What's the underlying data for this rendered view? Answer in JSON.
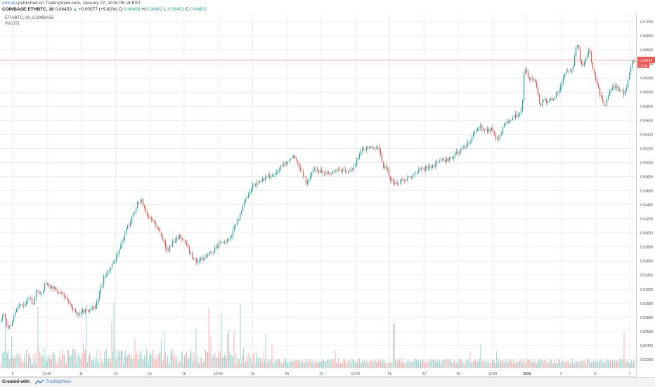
{
  "header": {
    "user": "emrulsi",
    "published": " published on TradingView.com, January 07, 2018 06:16 EST",
    "symbol": "COINBASE:ETHBTC, 30",
    "last": "0.06453",
    "change": "+0.00577 (+9.82%)",
    "o_label": "O:",
    "o": "0.06458",
    "h_label": "H:",
    "h": "0.06462",
    "l_label": "L:",
    "l": "0.06452",
    "c_label": "C:",
    "c": "0.06453"
  },
  "legend": {
    "series": "ETH/BTC, 30, COINBASE",
    "volume": "Vol (20)"
  },
  "price_badge": {
    "value": "0.06453",
    "timer": "13:44"
  },
  "footer": {
    "created": "Created with",
    "brand": "TradingView"
  },
  "colors": {
    "up": "#26a69a",
    "down": "#ef5350",
    "grid": "#ececec",
    "priceline": "#ef5350"
  },
  "chart_data": {
    "type": "candlestick",
    "y_ticks": [
      "0.07000",
      "0.06800",
      "0.06600",
      "0.06400",
      "0.06200",
      "0.06000",
      "0.05800",
      "0.05600",
      "0.05400",
      "0.05200",
      "0.05000",
      "0.04800",
      "0.04600",
      "0.04400",
      "0.04200",
      "0.04000",
      "0.03800",
      "0.03600",
      "0.03400",
      "0.03200",
      "0.03000",
      "0.02800",
      "0.02600",
      "0.02400",
      "0.02200"
    ],
    "ylim": [
      0.0208,
      0.071
    ],
    "x_ticks": [
      "8",
      "12:00",
      "11",
      "13",
      "14",
      "15",
      "12:00",
      "18",
      "20",
      "22",
      "12:00",
      "25",
      "27",
      "29",
      "12:00",
      "2018",
      "3",
      "5",
      "7"
    ],
    "last_price": 0.06453,
    "close_path": [
      [
        0,
        0.0275
      ],
      [
        5,
        0.0285
      ],
      [
        10,
        0.0265
      ],
      [
        16,
        0.027
      ],
      [
        22,
        0.029
      ],
      [
        28,
        0.03
      ],
      [
        34,
        0.0295
      ],
      [
        40,
        0.031
      ],
      [
        46,
        0.0298
      ],
      [
        52,
        0.032
      ],
      [
        58,
        0.031
      ],
      [
        64,
        0.033
      ],
      [
        70,
        0.0325
      ],
      [
        76,
        0.032
      ],
      [
        82,
        0.0318
      ],
      [
        88,
        0.0312
      ],
      [
        94,
        0.0305
      ],
      [
        100,
        0.0296
      ],
      [
        106,
        0.0288
      ],
      [
        112,
        0.0285
      ],
      [
        118,
        0.029
      ],
      [
        124,
        0.0288
      ],
      [
        130,
        0.0292
      ],
      [
        136,
        0.0296
      ],
      [
        142,
        0.0318
      ],
      [
        148,
        0.034
      ],
      [
        154,
        0.0345
      ],
      [
        160,
        0.0358
      ],
      [
        166,
        0.0368
      ],
      [
        172,
        0.0385
      ],
      [
        178,
        0.04
      ],
      [
        184,
        0.0415
      ],
      [
        190,
        0.043
      ],
      [
        196,
        0.0444
      ],
      [
        202,
        0.0445
      ],
      [
        208,
        0.0425
      ],
      [
        214,
        0.042
      ],
      [
        220,
        0.0415
      ],
      [
        226,
        0.04
      ],
      [
        232,
        0.0388
      ],
      [
        238,
        0.0375
      ],
      [
        244,
        0.0385
      ],
      [
        250,
        0.0392
      ],
      [
        256,
        0.0395
      ],
      [
        262,
        0.0388
      ],
      [
        268,
        0.0375
      ],
      [
        274,
        0.0365
      ],
      [
        280,
        0.036
      ],
      [
        286,
        0.0362
      ],
      [
        292,
        0.0368
      ],
      [
        298,
        0.0372
      ],
      [
        304,
        0.0376
      ],
      [
        310,
        0.0382
      ],
      [
        316,
        0.0385
      ],
      [
        322,
        0.0387
      ],
      [
        328,
        0.0395
      ],
      [
        334,
        0.041
      ],
      [
        340,
        0.0425
      ],
      [
        346,
        0.044
      ],
      [
        352,
        0.0455
      ],
      [
        358,
        0.0465
      ],
      [
        364,
        0.047
      ],
      [
        370,
        0.0475
      ],
      [
        376,
        0.0478
      ],
      [
        382,
        0.048
      ],
      [
        388,
        0.0482
      ],
      [
        394,
        0.0488
      ],
      [
        400,
        0.0495
      ],
      [
        406,
        0.05
      ],
      [
        412,
        0.0505
      ],
      [
        418,
        0.051
      ],
      [
        424,
        0.0495
      ],
      [
        430,
        0.0485
      ],
      [
        436,
        0.047
      ],
      [
        442,
        0.0485
      ],
      [
        448,
        0.049
      ],
      [
        454,
        0.0488
      ],
      [
        460,
        0.0487
      ],
      [
        466,
        0.0485
      ],
      [
        472,
        0.0487
      ],
      [
        478,
        0.0488
      ],
      [
        484,
        0.049
      ],
      [
        490,
        0.0488
      ],
      [
        496,
        0.0488
      ],
      [
        502,
        0.049
      ],
      [
        508,
        0.0505
      ],
      [
        514,
        0.052
      ],
      [
        520,
        0.052
      ],
      [
        526,
        0.0522
      ],
      [
        532,
        0.052
      ],
      [
        538,
        0.0525
      ],
      [
        544,
        0.0495
      ],
      [
        550,
        0.049
      ],
      [
        556,
        0.0475
      ],
      [
        562,
        0.047
      ],
      [
        568,
        0.0472
      ],
      [
        574,
        0.0475
      ],
      [
        580,
        0.0478
      ],
      [
        586,
        0.0482
      ],
      [
        592,
        0.0485
      ],
      [
        598,
        0.049
      ],
      [
        604,
        0.0492
      ],
      [
        610,
        0.0495
      ],
      [
        616,
        0.0496
      ],
      [
        622,
        0.05
      ],
      [
        628,
        0.0502
      ],
      [
        634,
        0.0504
      ],
      [
        640,
        0.0506
      ],
      [
        646,
        0.051
      ],
      [
        652,
        0.0515
      ],
      [
        658,
        0.0518
      ],
      [
        664,
        0.0525
      ],
      [
        670,
        0.0535
      ],
      [
        676,
        0.0545
      ],
      [
        682,
        0.055
      ],
      [
        688,
        0.0548
      ],
      [
        694,
        0.0546
      ],
      [
        700,
        0.0548
      ],
      [
        706,
        0.0532
      ],
      [
        712,
        0.054
      ],
      [
        718,
        0.0555
      ],
      [
        724,
        0.056
      ],
      [
        730,
        0.0565
      ],
      [
        736,
        0.0568
      ],
      [
        742,
        0.0575
      ],
      [
        745,
        0.0625
      ],
      [
        748,
        0.0635
      ],
      [
        752,
        0.062
      ],
      [
        758,
        0.0618
      ],
      [
        764,
        0.0605
      ],
      [
        768,
        0.0575
      ],
      [
        772,
        0.059
      ],
      [
        778,
        0.0585
      ],
      [
        784,
        0.059
      ],
      [
        790,
        0.0595
      ],
      [
        796,
        0.0605
      ],
      [
        802,
        0.0625
      ],
      [
        808,
        0.0628
      ],
      [
        814,
        0.0632
      ],
      [
        818,
        0.066
      ],
      [
        822,
        0.0668
      ],
      [
        826,
        0.064
      ],
      [
        830,
        0.064
      ],
      [
        834,
        0.065
      ],
      [
        838,
        0.0663
      ],
      [
        842,
        0.064
      ],
      [
        846,
        0.062
      ],
      [
        852,
        0.06
      ],
      [
        856,
        0.059
      ],
      [
        860,
        0.0575
      ],
      [
        866,
        0.06
      ],
      [
        872,
        0.061
      ],
      [
        878,
        0.0605
      ],
      [
        884,
        0.06
      ],
      [
        888,
        0.0598
      ],
      [
        892,
        0.0612
      ],
      [
        896,
        0.0632
      ],
      [
        900,
        0.0645
      ],
      [
        904,
        0.0645
      ]
    ]
  }
}
